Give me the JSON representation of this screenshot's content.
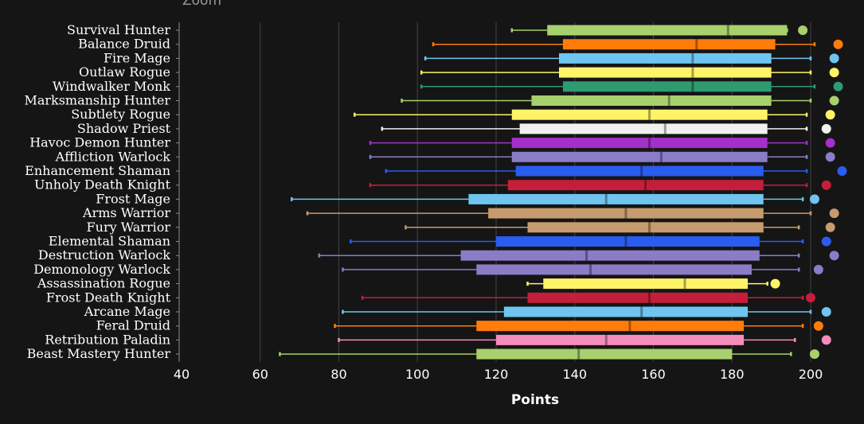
{
  "zoom_label": "Zoom",
  "chart_data": {
    "type": "boxplot",
    "orientation": "horizontal",
    "xlabel": "Points",
    "xlim": [
      40,
      200
    ],
    "xticks": [
      "40",
      "60",
      "80",
      "100",
      "120",
      "140",
      "160",
      "180",
      "200"
    ],
    "grid": true,
    "series": [
      {
        "name": "Survival Hunter",
        "color": "#a8d06c",
        "min": 124,
        "q1": 133,
        "median": 179,
        "q3": 194,
        "max": 194,
        "outlier": 198
      },
      {
        "name": "Balance Druid",
        "color": "#ff7c0a",
        "min": 104,
        "q1": 137,
        "median": 171,
        "q3": 191,
        "max": 201,
        "outlier": 207
      },
      {
        "name": "Fire Mage",
        "color": "#6fc5f0",
        "min": 102,
        "q1": 136,
        "median": 170,
        "q3": 190,
        "max": 200,
        "outlier": 206
      },
      {
        "name": "Outlaw Rogue",
        "color": "#fff468",
        "min": 101,
        "q1": 136,
        "median": 170,
        "q3": 190,
        "max": 200,
        "outlier": 206
      },
      {
        "name": "Windwalker Monk",
        "color": "#2e9a72",
        "min": 101,
        "q1": 137,
        "median": 170,
        "q3": 190,
        "max": 201,
        "outlier": 207
      },
      {
        "name": "Marksmanship Hunter",
        "color": "#a8d06c",
        "min": 96,
        "q1": 129,
        "median": 164,
        "q3": 190,
        "max": 200,
        "outlier": 206
      },
      {
        "name": "Subtlety Rogue",
        "color": "#fff468",
        "min": 84,
        "q1": 124,
        "median": 159,
        "q3": 189,
        "max": 199,
        "outlier": 205
      },
      {
        "name": "Shadow Priest",
        "color": "#f0f0f0",
        "min": 91,
        "q1": 126,
        "median": 163,
        "q3": 189,
        "max": 199,
        "outlier": 204
      },
      {
        "name": "Havoc Demon Hunter",
        "color": "#a330c9",
        "min": 88,
        "q1": 124,
        "median": 159,
        "q3": 189,
        "max": 199,
        "outlier": 205
      },
      {
        "name": "Affliction Warlock",
        "color": "#8b7cc8",
        "min": 88,
        "q1": 124,
        "median": 162,
        "q3": 189,
        "max": 199,
        "outlier": 205
      },
      {
        "name": "Enhancement Shaman",
        "color": "#2a5cf0",
        "min": 92,
        "q1": 125,
        "median": 157,
        "q3": 188,
        "max": 199,
        "outlier": 208
      },
      {
        "name": "Unholy Death Knight",
        "color": "#c41e3a",
        "min": 88,
        "q1": 123,
        "median": 158,
        "q3": 188,
        "max": 199,
        "outlier": 204
      },
      {
        "name": "Frost Mage",
        "color": "#6fc5f0",
        "min": 68,
        "q1": 113,
        "median": 148,
        "q3": 188,
        "max": 198,
        "outlier": 201
      },
      {
        "name": "Arms Warrior",
        "color": "#c69b6d",
        "min": 72,
        "q1": 118,
        "median": 153,
        "q3": 188,
        "max": 200,
        "outlier": 206
      },
      {
        "name": "Fury Warrior",
        "color": "#c69b6d",
        "min": 97,
        "q1": 128,
        "median": 159,
        "q3": 188,
        "max": 197,
        "outlier": 205
      },
      {
        "name": "Elemental Shaman",
        "color": "#2a5cf0",
        "min": 83,
        "q1": 120,
        "median": 153,
        "q3": 187,
        "max": 198,
        "outlier": 204
      },
      {
        "name": "Destruction Warlock",
        "color": "#8b7cc8",
        "min": 75,
        "q1": 111,
        "median": 143,
        "q3": 187,
        "max": 197,
        "outlier": 206
      },
      {
        "name": "Demonology Warlock",
        "color": "#8b7cc8",
        "min": 81,
        "q1": 115,
        "median": 144,
        "q3": 185,
        "max": 197,
        "outlier": 202
      },
      {
        "name": "Assassination Rogue",
        "color": "#fff468",
        "min": 128,
        "q1": 132,
        "median": 168,
        "q3": 184,
        "max": 189,
        "outlier": 191
      },
      {
        "name": "Frost Death Knight",
        "color": "#c41e3a",
        "min": 86,
        "q1": 128,
        "median": 159,
        "q3": 184,
        "max": 198,
        "outlier": 200
      },
      {
        "name": "Arcane Mage",
        "color": "#6fc5f0",
        "min": 81,
        "q1": 122,
        "median": 157,
        "q3": 184,
        "max": 200,
        "outlier": 204
      },
      {
        "name": "Feral Druid",
        "color": "#ff7c0a",
        "min": 79,
        "q1": 115,
        "median": 154,
        "q3": 183,
        "max": 198,
        "outlier": 202
      },
      {
        "name": "Retribution Paladin",
        "color": "#f58cba",
        "min": 80,
        "q1": 120,
        "median": 148,
        "q3": 183,
        "max": 196,
        "outlier": 204
      },
      {
        "name": "Beast Mastery Hunter",
        "color": "#a8d06c",
        "min": 65,
        "q1": 115,
        "median": 141,
        "q3": 180,
        "max": 195,
        "outlier": 201
      }
    ]
  }
}
